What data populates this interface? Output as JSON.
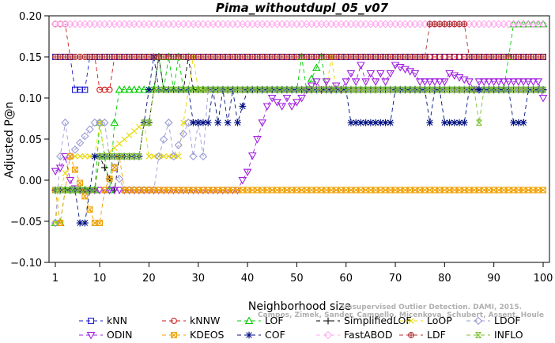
{
  "chart_data": {
    "type": "line",
    "title": "Pima_withoutdupl_05_v07",
    "xlabel": "Neighborhood size",
    "ylabel": "Adjusted P@n",
    "xlim": [
      1,
      100
    ],
    "ylim": [
      -0.1,
      0.2
    ],
    "x_ticks": [
      1,
      10,
      20,
      30,
      40,
      50,
      60,
      70,
      80,
      90,
      100
    ],
    "x_tick_labels": [
      "1",
      "10",
      "20",
      "30",
      "40",
      "50",
      "60",
      "70",
      "80",
      "90",
      "100"
    ],
    "y_ticks": [
      -0.1,
      -0.05,
      0.0,
      0.05,
      0.1,
      0.15,
      0.2
    ],
    "y_tick_labels": [
      "−0.10",
      "−0.05",
      "0.00",
      "0.05",
      "0.10",
      "0.15",
      "0.20"
    ],
    "credit_lines": [
      "Unsupervised Outlier Detection. DAMI, 2015.",
      "Campos, Zimek, Sander, Campello, Micenkova, Schubert, Assent, Houle"
    ],
    "legend_position": "bottom",
    "series": [
      {
        "name": "kNN",
        "color": "#1a1ad0",
        "marker": "square",
        "dash": "5,4",
        "segments": [
          [
            1,
            0.15
          ],
          [
            4,
            0.15
          ],
          [
            5,
            0.11
          ],
          [
            7,
            0.11
          ],
          [
            8,
            0.15
          ],
          [
            100,
            0.15
          ]
        ]
      },
      {
        "name": "kNNW",
        "color": "#d01a1a",
        "marker": "circle",
        "dash": "5,4",
        "segments": [
          [
            1,
            0.19
          ],
          [
            3,
            0.19
          ],
          [
            4,
            0.15
          ],
          [
            9,
            0.15
          ],
          [
            10,
            0.11
          ],
          [
            12,
            0.11
          ],
          [
            13,
            0.15
          ],
          [
            100,
            0.15
          ]
        ]
      },
      {
        "name": "LOF",
        "color": "#00cc00",
        "marker": "triangle",
        "dash": "5,4",
        "segments": [
          [
            1,
            -0.052
          ],
          [
            2,
            -0.052
          ],
          [
            3,
            -0.012
          ],
          [
            9,
            -0.012
          ],
          [
            10,
            0.07
          ],
          [
            12,
            -0.012
          ],
          [
            13,
            0.07
          ],
          [
            14,
            0.11
          ],
          [
            21,
            0.11
          ],
          [
            22,
            0.15
          ],
          [
            23,
            0.11
          ],
          [
            24,
            0.15
          ],
          [
            25,
            0.11
          ],
          [
            26,
            0.15
          ],
          [
            27,
            0.11
          ],
          [
            40,
            0.11
          ],
          [
            44,
            0.11
          ],
          [
            50,
            0.11
          ],
          [
            51,
            0.15
          ],
          [
            52,
            0.11
          ],
          [
            55,
            0.15
          ],
          [
            56,
            0.11
          ],
          [
            92,
            0.11
          ],
          [
            93,
            0.15
          ],
          [
            94,
            0.19
          ],
          [
            100,
            0.19
          ]
        ]
      },
      {
        "name": "SimplifiedLOF",
        "color": "#000000",
        "marker": "plus",
        "dash": "5,4",
        "segments": [
          [
            1,
            -0.012
          ],
          [
            9,
            -0.012
          ],
          [
            10,
            0.029
          ],
          [
            13,
            -0.012
          ],
          [
            14,
            0.029
          ],
          [
            18,
            0.029
          ],
          [
            19,
            0.07
          ],
          [
            20,
            0.07
          ],
          [
            21,
            0.11
          ],
          [
            22,
            0.15
          ],
          [
            23,
            0.11
          ],
          [
            27,
            0.11
          ],
          [
            28,
            0.15
          ],
          [
            29,
            0.11
          ],
          [
            87,
            0.11
          ],
          [
            88,
            0.11
          ],
          [
            100,
            0.11
          ]
        ]
      },
      {
        "name": "LoOP",
        "color": "#e6d800",
        "marker": "x",
        "dash": "5,4",
        "segments": [
          [
            1,
            -0.052
          ],
          [
            2,
            -0.012
          ],
          [
            4,
            0.029
          ],
          [
            9,
            0.029
          ],
          [
            10,
            0.07
          ],
          [
            11,
            0.029
          ],
          [
            19,
            0.07
          ],
          [
            20,
            0.029
          ],
          [
            26,
            0.029
          ],
          [
            27,
            0.07
          ],
          [
            28,
            0.11
          ],
          [
            29,
            0.15
          ],
          [
            30,
            0.11
          ],
          [
            56,
            0.11
          ],
          [
            57,
            0.15
          ],
          [
            58,
            0.11
          ],
          [
            100,
            0.11
          ]
        ]
      },
      {
        "name": "LDOF",
        "color": "#9a9ad8",
        "marker": "diamond",
        "dash": "5,4",
        "segments": [
          [
            1,
            -0.052
          ],
          [
            2,
            0.029
          ],
          [
            3,
            0.07
          ],
          [
            4,
            0.029
          ],
          [
            9,
            0.07
          ],
          [
            11,
            0.07
          ],
          [
            12,
            0.029
          ],
          [
            15,
            -0.012
          ],
          [
            21,
            -0.012
          ],
          [
            22,
            0.029
          ],
          [
            24,
            0.07
          ],
          [
            25,
            0.029
          ],
          [
            28,
            0.07
          ],
          [
            29,
            0.029
          ],
          [
            30,
            0.07
          ],
          [
            31,
            0.029
          ],
          [
            32,
            0.11
          ],
          [
            100,
            0.11
          ]
        ]
      },
      {
        "name": "ODIN",
        "color": "#a020e0",
        "marker": "triangle-down",
        "dash": "5,4",
        "segments": [
          [
            1,
            0.011
          ],
          [
            2,
            0.015
          ],
          [
            3,
            0.029
          ],
          [
            4,
            0.0
          ],
          [
            5,
            -0.01
          ],
          [
            6,
            -0.012
          ],
          [
            16,
            -0.012
          ],
          [
            17,
            -0.012
          ],
          [
            38,
            -0.012
          ],
          [
            39,
            0.0
          ],
          [
            40,
            0.01
          ],
          [
            41,
            0.03
          ],
          [
            42,
            0.05
          ],
          [
            43,
            0.07
          ],
          [
            44,
            0.09
          ],
          [
            45,
            0.1
          ],
          [
            46,
            0.095
          ],
          [
            47,
            0.09
          ],
          [
            48,
            0.1
          ],
          [
            49,
            0.09
          ],
          [
            50,
            0.095
          ],
          [
            51,
            0.1
          ],
          [
            52,
            0.11
          ],
          [
            53,
            0.115
          ],
          [
            54,
            0.12
          ],
          [
            55,
            0.11
          ],
          [
            56,
            0.12
          ],
          [
            57,
            0.11
          ],
          [
            58,
            0.115
          ],
          [
            59,
            0.11
          ],
          [
            60,
            0.12
          ],
          [
            61,
            0.13
          ],
          [
            62,
            0.12
          ],
          [
            63,
            0.14
          ],
          [
            64,
            0.12
          ],
          [
            65,
            0.13
          ],
          [
            66,
            0.12
          ],
          [
            67,
            0.13
          ],
          [
            68,
            0.12
          ],
          [
            69,
            0.13
          ],
          [
            70,
            0.14
          ],
          [
            74,
            0.13
          ],
          [
            75,
            0.12
          ],
          [
            80,
            0.12
          ],
          [
            81,
            0.13
          ],
          [
            85,
            0.12
          ],
          [
            86,
            0.11
          ],
          [
            87,
            0.12
          ],
          [
            99,
            0.12
          ],
          [
            100,
            0.1
          ]
        ]
      },
      {
        "name": "KDEOS",
        "color": "#f0a000",
        "marker": "square-x",
        "dash": "5,4",
        "segments": [
          [
            1,
            -0.012
          ],
          [
            2,
            -0.052
          ],
          [
            3,
            -0.012
          ],
          [
            4,
            0.029
          ],
          [
            9,
            -0.052
          ],
          [
            10,
            -0.052
          ],
          [
            11,
            -0.012
          ],
          [
            14,
            0.029
          ],
          [
            15,
            -0.012
          ],
          [
            100,
            -0.012
          ]
        ]
      },
      {
        "name": "COF",
        "color": "#001080",
        "marker": "asterisk",
        "dash": "5,4",
        "segments": [
          [
            1,
            -0.012
          ],
          [
            5,
            -0.012
          ],
          [
            6,
            -0.052
          ],
          [
            7,
            -0.052
          ],
          [
            8,
            -0.012
          ],
          [
            9,
            0.029
          ],
          [
            18,
            0.029
          ],
          [
            19,
            0.07
          ],
          [
            20,
            0.11
          ],
          [
            21,
            0.15
          ],
          [
            22,
            0.11
          ],
          [
            28,
            0.11
          ],
          [
            29,
            0.07
          ],
          [
            32,
            0.07
          ],
          [
            33,
            0.11
          ],
          [
            34,
            0.07
          ],
          [
            35,
            0.11
          ],
          [
            36,
            0.07
          ],
          [
            37,
            0.11
          ],
          [
            38,
            0.07
          ],
          [
            39,
            0.09
          ],
          [
            40,
            0.11
          ],
          [
            60,
            0.11
          ],
          [
            61,
            0.07
          ],
          [
            69,
            0.07
          ],
          [
            70,
            0.11
          ],
          [
            76,
            0.11
          ],
          [
            77,
            0.07
          ],
          [
            78,
            0.11
          ],
          [
            79,
            0.11
          ],
          [
            80,
            0.07
          ],
          [
            84,
            0.07
          ],
          [
            85,
            0.11
          ],
          [
            93,
            0.11
          ],
          [
            94,
            0.07
          ],
          [
            96,
            0.07
          ],
          [
            97,
            0.11
          ],
          [
            100,
            0.11
          ]
        ]
      },
      {
        "name": "FastABOD",
        "color": "#ffaaee",
        "marker": "diamond",
        "dash": "5,4",
        "segments": [
          [
            1,
            0.19
          ],
          [
            100,
            0.19
          ]
        ]
      },
      {
        "name": "LDF",
        "color": "#b03030",
        "marker": "circle-plus",
        "dash": "5,4",
        "segments": [
          [
            1,
            0.15
          ],
          [
            76,
            0.15
          ],
          [
            77,
            0.19
          ],
          [
            84,
            0.19
          ],
          [
            85,
            0.15
          ],
          [
            100,
            0.15
          ]
        ]
      },
      {
        "name": "INFLO",
        "color": "#7cc030",
        "marker": "hourglass",
        "dash": "5,4",
        "segments": [
          [
            1,
            -0.012
          ],
          [
            9,
            -0.012
          ],
          [
            10,
            0.029
          ],
          [
            18,
            0.029
          ],
          [
            19,
            0.07
          ],
          [
            20,
            0.07
          ],
          [
            21,
            0.11
          ],
          [
            86,
            0.11
          ],
          [
            87,
            0.07
          ],
          [
            88,
            0.11
          ],
          [
            100,
            0.11
          ]
        ]
      }
    ]
  }
}
